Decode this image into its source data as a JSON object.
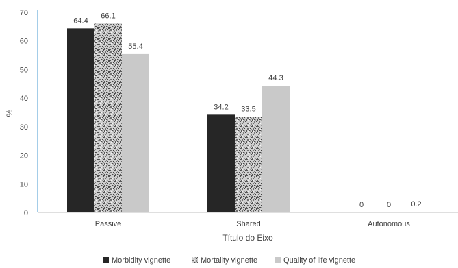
{
  "chart_data": {
    "type": "bar",
    "categories": [
      "Passive",
      "Shared",
      "Autonomous"
    ],
    "series": [
      {
        "name": "Morbidity vignette",
        "values": [
          64.4,
          34.2,
          0
        ],
        "labels": [
          "64.4",
          "34.2",
          "0"
        ]
      },
      {
        "name": "Mortality vignette",
        "values": [
          66.1,
          33.5,
          0
        ],
        "labels": [
          "66.1",
          "33.5",
          "0"
        ]
      },
      {
        "name": "Quality of life vignette",
        "values": [
          55.4,
          44.3,
          0.2
        ],
        "labels": [
          "55.4",
          "44.3",
          "0.2"
        ]
      }
    ],
    "xlabel": "Título do Eixo",
    "ylabel": "%",
    "ylim": [
      0,
      70
    ],
    "yticks": [
      0,
      10,
      20,
      30,
      40,
      50,
      60,
      70
    ],
    "legend_position": "bottom",
    "grid": false,
    "colors": {
      "Morbidity vignette": "#262626",
      "Mortality vignette": "#a6a6a6",
      "Quality of life vignette": "#c9c9c9",
      "axis": "#4a9bd1"
    },
    "patterns": {
      "Mortality vignette": "speckled"
    }
  }
}
